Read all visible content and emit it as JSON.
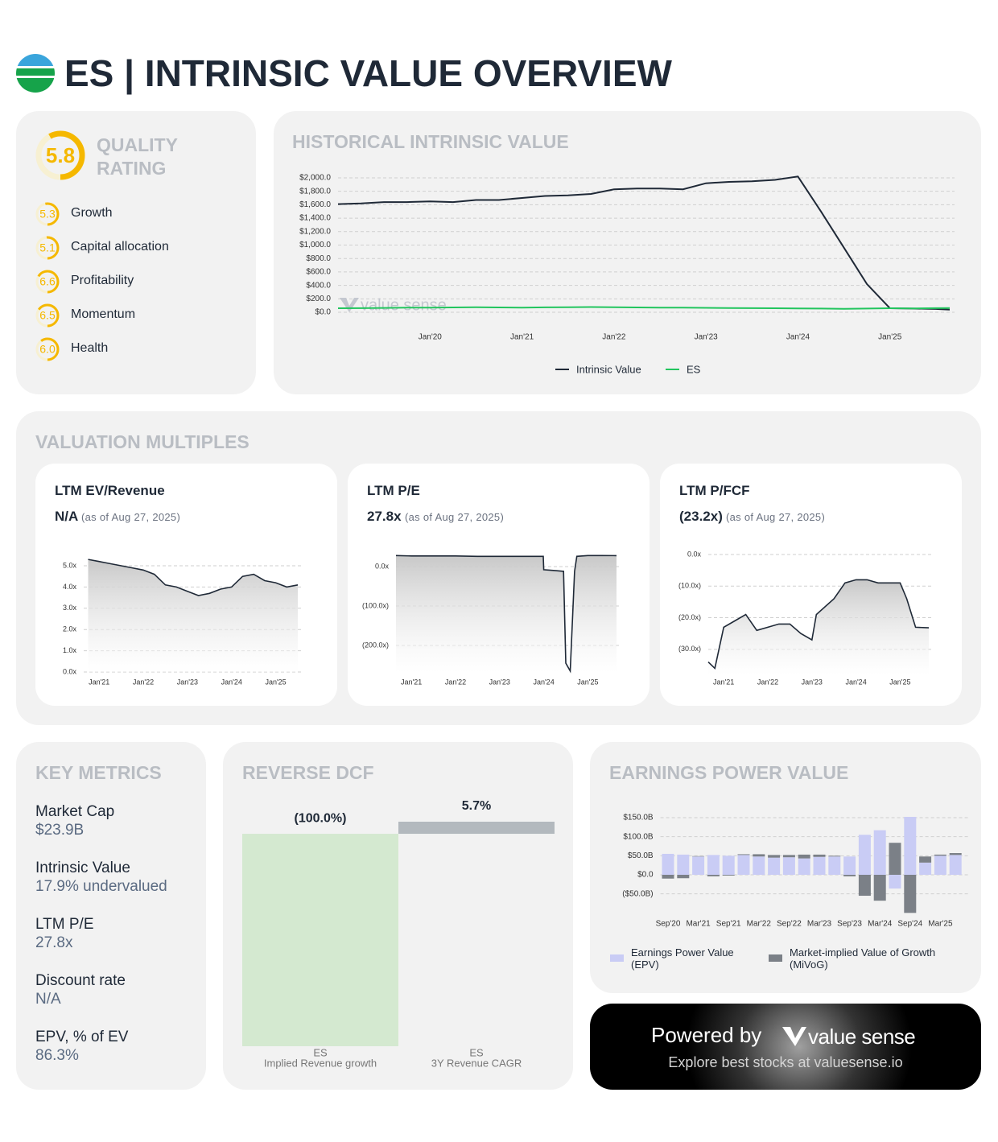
{
  "header": {
    "title": "ES | INTRINSIC VALUE OVERVIEW"
  },
  "quality": {
    "title": "QUALITY RATING",
    "score": 5.8,
    "range": [
      0,
      10
    ],
    "color": "#f5b800",
    "items": [
      {
        "name": "Growth",
        "score": 5.3
      },
      {
        "name": "Capital allocation",
        "score": 5.1
      },
      {
        "name": "Profitability",
        "score": 6.6
      },
      {
        "name": "Momentum",
        "score": 6.5
      },
      {
        "name": "Health",
        "score": 6,
        "score_label": "6.0"
      }
    ]
  },
  "sections": {
    "multiples": "VALUATION MULTIPLES"
  },
  "chart_data": [
    {
      "type": "line",
      "title": "HISTORICAL INTRINSIC VALUE",
      "watermark": "value sense",
      "x": [
        2019,
        2019.25,
        2019.5,
        2019.75,
        2020,
        2020.25,
        2020.5,
        2020.75,
        2021,
        2021.25,
        2021.5,
        2021.75,
        2022,
        2022.25,
        2022.5,
        2022.75,
        2023,
        2023.25,
        2023.5,
        2023.75,
        2024,
        2024.25,
        2024.5,
        2024.75,
        2025,
        2025.25,
        2025.5,
        2025.65
      ],
      "xlim": [
        2019,
        2025.65
      ],
      "xticks": [
        {
          "value": 2020,
          "label": "Jan'20"
        },
        {
          "value": 2021,
          "label": "Jan'21"
        },
        {
          "value": 2022,
          "label": "Jan'22"
        },
        {
          "value": 2023,
          "label": "Jan'23"
        },
        {
          "value": 2024,
          "label": "Jan'24"
        },
        {
          "value": 2025,
          "label": "Jan'25"
        }
      ],
      "ylim": [
        -20,
        2080
      ],
      "yticks": [
        {
          "value": 0,
          "label": "$0.0"
        },
        {
          "value": 200,
          "label": "$200.0"
        },
        {
          "value": 400,
          "label": "$400.0"
        },
        {
          "value": 600,
          "label": "$600.0"
        },
        {
          "value": 800,
          "label": "$800.0"
        },
        {
          "value": 1000,
          "label": "$1,000.0"
        },
        {
          "value": 1200,
          "label": "$1,200.0"
        },
        {
          "value": 1400,
          "label": "$1,400.0"
        },
        {
          "value": 1600,
          "label": "$1,600.0"
        },
        {
          "value": 1800,
          "label": "$1,800.0"
        },
        {
          "value": 2000,
          "label": "$2,000.0"
        }
      ],
      "grid": true,
      "series": [
        {
          "name": "Intrinsic Value",
          "color": "#1f2937",
          "values": [
            1610,
            1620,
            1640,
            1640,
            1650,
            1640,
            1670,
            1670,
            1700,
            1730,
            1740,
            1760,
            1830,
            1840,
            1840,
            1830,
            1920,
            1940,
            1950,
            1970,
            2020,
            1500,
            960,
            420,
            60,
            55,
            50,
            40
          ]
        },
        {
          "name": "ES",
          "color": "#22c55e",
          "values": [
            60,
            62,
            65,
            70,
            68,
            72,
            75,
            72,
            70,
            73,
            76,
            78,
            74,
            72,
            70,
            68,
            66,
            64,
            62,
            60,
            58,
            55,
            52,
            55,
            60,
            58,
            62,
            64
          ]
        }
      ]
    },
    {
      "type": "area",
      "title": "LTM EV/Revenue",
      "value_text": "N/A",
      "as_of": "(as of Aug 27, 2025)",
      "color": "#1f2937",
      "x": [
        2020.75,
        2021,
        2021.25,
        2021.5,
        2021.75,
        2022,
        2022.25,
        2022.5,
        2022.75,
        2023,
        2023.25,
        2023.5,
        2023.75,
        2024,
        2024.25,
        2024.5,
        2024.75,
        2025,
        2025.25,
        2025.5
      ],
      "values": [
        5.3,
        5.2,
        5.1,
        5.0,
        4.9,
        4.8,
        4.6,
        4.1,
        4.0,
        3.8,
        3.6,
        3.7,
        3.9,
        4.0,
        4.5,
        4.6,
        4.3,
        4.2,
        4.0,
        4.1
      ],
      "xlim": [
        2020.65,
        2025.5
      ],
      "xticks": [
        {
          "value": 2021,
          "label": "Jan'21"
        },
        {
          "value": 2022,
          "label": "Jan'22"
        },
        {
          "value": 2023,
          "label": "Jan'23"
        },
        {
          "value": 2024,
          "label": "Jan'24"
        },
        {
          "value": 2025,
          "label": "Jan'25"
        }
      ],
      "ylim": [
        0,
        5.5
      ],
      "yticks": [
        {
          "value": 0,
          "label": "0.0x"
        },
        {
          "value": 1,
          "label": "1.0x"
        },
        {
          "value": 2,
          "label": "2.0x"
        },
        {
          "value": 3,
          "label": "3.0x"
        },
        {
          "value": 4,
          "label": "4.0x"
        },
        {
          "value": 5,
          "label": "5.0x"
        }
      ],
      "grid": true
    },
    {
      "type": "area",
      "title": "LTM P/E",
      "value_text": "27.8x",
      "as_of": "(as of Aug 27, 2025)",
      "color": "#1f2937",
      "x": [
        2020.65,
        2021,
        2021.5,
        2022,
        2022.5,
        2023,
        2023.5,
        2023.99,
        2024,
        2024.25,
        2024.45,
        2024.5,
        2024.6,
        2024.7,
        2024.75,
        2025,
        2025.3,
        2025.65
      ],
      "values": [
        28,
        27,
        27,
        27,
        26,
        26,
        26,
        26,
        -8,
        -10,
        -12,
        -245,
        -265,
        -12,
        26,
        28,
        28,
        27.8
      ],
      "xlim": [
        2020.65,
        2025.65
      ],
      "xticks": [
        {
          "value": 2021,
          "label": "Jan'21"
        },
        {
          "value": 2022,
          "label": "Jan'22"
        },
        {
          "value": 2023,
          "label": "Jan'23"
        },
        {
          "value": 2024,
          "label": "Jan'24"
        },
        {
          "value": 2025,
          "label": "Jan'25"
        }
      ],
      "ylim": [
        -270,
        30
      ],
      "yticks": [
        {
          "value": 0,
          "label": "0.0x"
        },
        {
          "value": -100,
          "label": "(100.0x)"
        },
        {
          "value": -200,
          "label": "(200.0x)"
        }
      ],
      "grid": true
    },
    {
      "type": "area",
      "title": "LTM P/FCF",
      "value_text": "(23.2x)",
      "as_of": "(as of Aug 27, 2025)",
      "color": "#1f2937",
      "x": [
        2020.65,
        2020.8,
        2021,
        2021.25,
        2021.5,
        2021.75,
        2022,
        2022.25,
        2022.5,
        2022.75,
        2023,
        2023.1,
        2023.5,
        2023.75,
        2024,
        2024.25,
        2024.5,
        2024.75,
        2025,
        2025.15,
        2025.35,
        2025.65
      ],
      "values": [
        -34,
        -36,
        -23,
        -21,
        -19,
        -24,
        -23,
        -22,
        -22,
        -25,
        -27,
        -19,
        -14,
        -9,
        -8,
        -8,
        -9,
        -9,
        -9,
        -14,
        -23,
        -23.2
      ],
      "xlim": [
        2020.65,
        2025.65
      ],
      "xticks": [
        {
          "value": 2021,
          "label": "Jan'21"
        },
        {
          "value": 2022,
          "label": "Jan'22"
        },
        {
          "value": 2023,
          "label": "Jan'23"
        },
        {
          "value": 2024,
          "label": "Jan'24"
        },
        {
          "value": 2025,
          "label": "Jan'25"
        }
      ],
      "ylim": [
        -38,
        2
      ],
      "yticks": [
        {
          "value": 0,
          "label": "0.0x"
        },
        {
          "value": -10,
          "label": "(10.0x)"
        },
        {
          "value": -20,
          "label": "(20.0x)"
        },
        {
          "value": -30,
          "label": "(30.0x)"
        }
      ],
      "grid": true
    },
    {
      "type": "bar",
      "title": "REVERSE DCF",
      "categories": [
        "ES",
        "ES"
      ],
      "subcategories": [
        "Implied Revenue growth",
        "3Y Revenue CAGR"
      ],
      "values": [
        -100,
        5.7
      ],
      "value_labels": [
        "(100.0%)",
        "5.7%"
      ],
      "colors": [
        "#d4e9d0",
        "#b3b9be"
      ],
      "ylim": [
        -100,
        5.7
      ]
    },
    {
      "type": "stacked_bar",
      "title": "EARNINGS POWER VALUE",
      "categories": [
        "Sep'20",
        null,
        "Mar'21",
        null,
        "Sep'21",
        null,
        "Mar'22",
        null,
        "Sep'22",
        null,
        "Mar'23",
        null,
        "Sep'23",
        null,
        "Mar'24",
        null,
        "Sep'24",
        null,
        "Mar'25",
        null
      ],
      "series": [
        {
          "name": "Earnings Power Value (EPV)",
          "color": "#c9ccf5",
          "values": [
            55,
            53,
            48,
            52,
            50,
            52,
            48,
            45,
            46,
            43,
            47,
            48,
            48,
            105,
            117,
            -36,
            152,
            32,
            50,
            52
          ]
        },
        {
          "name": "Market-implied Value of Growth (MiVoG)",
          "color": "#7b8087",
          "values": [
            -10,
            -9,
            1,
            -4,
            -2,
            2,
            6,
            7,
            6,
            10,
            6,
            2,
            -4,
            -55,
            -68,
            84,
            -100,
            16,
            3,
            5
          ]
        }
      ],
      "ylim": [
        -105,
        155
      ],
      "yticks": [
        {
          "value": -50,
          "label": "($50.0B)"
        },
        {
          "value": 0,
          "label": "$0.0"
        },
        {
          "value": 50,
          "label": "$50.0B"
        },
        {
          "value": 100,
          "label": "$100.0B"
        },
        {
          "value": 150,
          "label": "$150.0B"
        }
      ],
      "grid": true
    }
  ],
  "key_metrics": {
    "title": "KEY METRICS",
    "items": [
      {
        "label": "Market Cap",
        "value": "$23.9B"
      },
      {
        "label": "Intrinsic Value",
        "value": "17.9% undervalued"
      },
      {
        "label": "LTM P/E",
        "value": "27.8x"
      },
      {
        "label": "Discount rate",
        "value": "N/A"
      },
      {
        "label": "EPV, % of EV",
        "value": "86.3%"
      }
    ]
  },
  "footer": {
    "powered": "Powered by",
    "brand": "value sense",
    "tagline": "Explore best stocks at valuesense.io"
  }
}
